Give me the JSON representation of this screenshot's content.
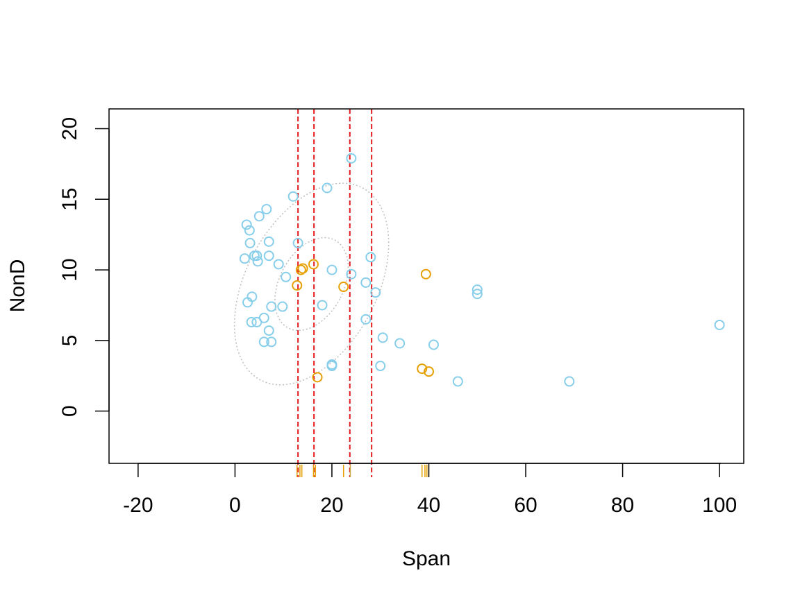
{
  "chart_data": {
    "type": "scatter",
    "title": "",
    "xlabel": "Span",
    "ylabel": "NonD",
    "xlim": [
      -26,
      105
    ],
    "ylim": [
      -3.7,
      21.4
    ],
    "x_ticks": [
      -20,
      0,
      20,
      40,
      60,
      80,
      100
    ],
    "y_ticks": [
      0,
      5,
      10,
      15,
      20
    ],
    "x_tick_labels": [
      "-20",
      "0",
      "20",
      "40",
      "60",
      "80",
      "100"
    ],
    "y_tick_labels": [
      "0",
      "5",
      "10",
      "15",
      "20"
    ],
    "colors": {
      "group_a": "#87CEEB",
      "group_b": "#E69F00",
      "vlines": "#E41A1C",
      "ellipse": "#BEBEBE",
      "rug_a": "#C9A74A",
      "rug_b": "#E69F00"
    },
    "series": [
      {
        "name": "light-blue points",
        "color": "#87CEEB",
        "points": [
          [
            2.4,
            13.2
          ],
          [
            3.0,
            12.8
          ],
          [
            3.1,
            11.9
          ],
          [
            5.0,
            13.8
          ],
          [
            6.5,
            14.3
          ],
          [
            12.0,
            15.2
          ],
          [
            19.0,
            15.8
          ],
          [
            24.0,
            17.9
          ],
          [
            7.0,
            12.0
          ],
          [
            13.0,
            11.9
          ],
          [
            4.0,
            11.0
          ],
          [
            4.5,
            11.0
          ],
          [
            4.7,
            10.6
          ],
          [
            2.0,
            10.8
          ],
          [
            7.0,
            11.0
          ],
          [
            9.0,
            10.4
          ],
          [
            10.5,
            9.5
          ],
          [
            20.0,
            10.0
          ],
          [
            24.0,
            9.7
          ],
          [
            28.0,
            10.9
          ],
          [
            27.0,
            9.1
          ],
          [
            29.0,
            8.4
          ],
          [
            3.5,
            8.1
          ],
          [
            2.6,
            7.7
          ],
          [
            7.5,
            7.4
          ],
          [
            9.8,
            7.4
          ],
          [
            18.0,
            7.5
          ],
          [
            6.0,
            6.6
          ],
          [
            3.4,
            6.3
          ],
          [
            4.5,
            6.3
          ],
          [
            7.0,
            5.7
          ],
          [
            27.0,
            6.5
          ],
          [
            30.5,
            5.2
          ],
          [
            34.0,
            4.8
          ],
          [
            41.0,
            4.7
          ],
          [
            6.0,
            4.9
          ],
          [
            7.5,
            4.9
          ],
          [
            20.0,
            3.3
          ],
          [
            20.0,
            3.2
          ],
          [
            30.0,
            3.2
          ],
          [
            46.0,
            2.1
          ],
          [
            69.0,
            2.1
          ],
          [
            50.0,
            8.6
          ],
          [
            50.0,
            8.3
          ],
          [
            100.0,
            6.1
          ]
        ]
      },
      {
        "name": "orange points",
        "color": "#E69F00",
        "points": [
          [
            12.8,
            8.9
          ],
          [
            13.6,
            10.0
          ],
          [
            14.0,
            10.1
          ],
          [
            16.2,
            10.4
          ],
          [
            22.4,
            8.8
          ],
          [
            39.4,
            9.7
          ],
          [
            17.0,
            2.4
          ],
          [
            38.6,
            3.0
          ],
          [
            40.0,
            2.8
          ]
        ]
      }
    ],
    "reference_lines": {
      "orientation": "vertical",
      "style": "dashed",
      "x": [
        13.0,
        16.3,
        23.7,
        28.2
      ]
    },
    "ellipses": [
      {
        "label": "inner",
        "center": [
          15.8,
          9.0
        ],
        "half_width_x": 6.6,
        "half_height_y": 3.52,
        "rotation_deg": 28,
        "style": "dotted"
      },
      {
        "label": "outer",
        "center": [
          15.8,
          9.0
        ],
        "half_width_x": 13.5,
        "half_height_y": 7.7,
        "rotation_deg": 28,
        "style": "dotted"
      }
    ],
    "rug": {
      "axis": "x",
      "marks": [
        {
          "x": 12.8,
          "group": "b"
        },
        {
          "x": 13.4,
          "group": "b"
        },
        {
          "x": 13.8,
          "group": "b"
        },
        {
          "x": 16.2,
          "group": "b"
        },
        {
          "x": 16.6,
          "group": "b"
        },
        {
          "x": 22.4,
          "group": "b"
        },
        {
          "x": 23.8,
          "group": "a"
        },
        {
          "x": 38.6,
          "group": "b"
        },
        {
          "x": 39.2,
          "group": "b"
        },
        {
          "x": 39.6,
          "group": "b"
        },
        {
          "x": 40.0,
          "group": "a"
        }
      ]
    },
    "grid": false,
    "legend": "none"
  }
}
